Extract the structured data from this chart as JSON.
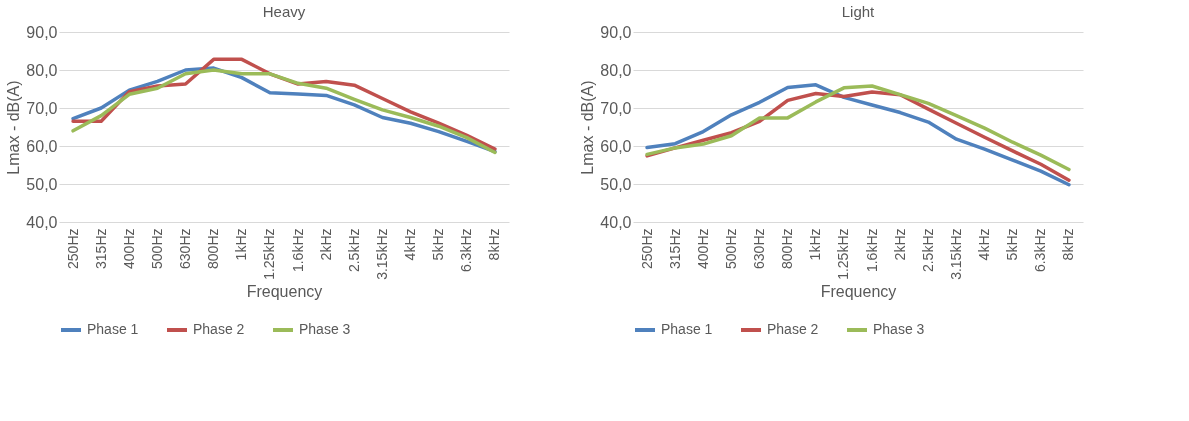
{
  "chart_data": [
    {
      "type": "line",
      "title": "Heavy",
      "xlabel": "Frequency",
      "ylabel": "Lmax - dB(A)",
      "categories": [
        "250Hz",
        "315Hz",
        "400Hz",
        "500Hz",
        "630Hz",
        "800Hz",
        "1kHz",
        "1.25kHz",
        "1.6kHz",
        "2kHz",
        "2.5kHz",
        "3.15kHz",
        "4kHz",
        "5kHz",
        "6.3kHz",
        "8kHz"
      ],
      "series": [
        {
          "name": "Phase 1",
          "color": "#4f81bd",
          "values": [
            67.2,
            70,
            74.7,
            77,
            80,
            80.5,
            78,
            74,
            73.7,
            73.3,
            70.8,
            67.5,
            66,
            63.8,
            61.2,
            58.5
          ]
        },
        {
          "name": "Phase 2",
          "color": "#c0504d",
          "values": [
            66.5,
            66.5,
            74.3,
            75.8,
            76.3,
            82.8,
            82.8,
            79,
            76.3,
            77,
            76,
            72.5,
            69,
            66,
            62.8,
            59.2
          ]
        },
        {
          "name": "Phase 3",
          "color": "#9bbb59",
          "values": [
            64,
            68,
            73.6,
            75.2,
            79,
            80,
            79,
            79,
            76.5,
            75.2,
            72.3,
            69.5,
            67.5,
            65.2,
            62.2,
            58.3
          ]
        }
      ],
      "ylim": [
        40,
        90
      ],
      "yticks": [
        {
          "value": 40,
          "label": "40,0"
        },
        {
          "value": 50,
          "label": "50,0"
        },
        {
          "value": 60,
          "label": "60,0"
        },
        {
          "value": 70,
          "label": "70,0"
        },
        {
          "value": 80,
          "label": "80,0"
        },
        {
          "value": 90,
          "label": "90,0"
        }
      ],
      "grid": "y",
      "legend": "bottom",
      "marker": "none",
      "line_style": "solid"
    },
    {
      "type": "line",
      "title": "Light",
      "xlabel": "Frequency",
      "ylabel": "Lmax - dB(A)",
      "categories": [
        "250Hz",
        "315Hz",
        "400Hz",
        "500Hz",
        "630Hz",
        "800Hz",
        "1kHz",
        "1.25kHz",
        "1.6kHz",
        "2kHz",
        "2.5kHz",
        "3.15kHz",
        "4kHz",
        "5kHz",
        "6.3kHz",
        "8kHz"
      ],
      "series": [
        {
          "name": "Phase 1",
          "color": "#4f81bd",
          "values": [
            59.6,
            60.6,
            63.8,
            68.2,
            71.5,
            75.4,
            76.1,
            72.8,
            70.8,
            68.8,
            66.3,
            61.8,
            59.2,
            56.3,
            53.4,
            49.8
          ]
        },
        {
          "name": "Phase 2",
          "color": "#c0504d",
          "values": [
            57.4,
            59.5,
            61.5,
            63.5,
            66.5,
            72,
            73.8,
            73,
            74.2,
            73.5,
            69.7,
            66,
            62.3,
            58.7,
            55.2,
            51
          ]
        },
        {
          "name": "Phase 3",
          "color": "#9bbb59",
          "values": [
            57.8,
            59.5,
            60.5,
            62.7,
            67.4,
            67.4,
            71.6,
            75.3,
            75.8,
            73.5,
            71.2,
            68,
            64.7,
            61,
            57.6,
            53.8
          ]
        }
      ],
      "ylim": [
        40,
        90
      ],
      "yticks": [
        {
          "value": 40,
          "label": "40,0"
        },
        {
          "value": 50,
          "label": "50,0"
        },
        {
          "value": 60,
          "label": "60,0"
        },
        {
          "value": 70,
          "label": "70,0"
        },
        {
          "value": 80,
          "label": "80,0"
        },
        {
          "value": 90,
          "label": "90,0"
        }
      ],
      "grid": "y",
      "legend": "bottom",
      "marker": "none",
      "line_style": "solid"
    }
  ]
}
